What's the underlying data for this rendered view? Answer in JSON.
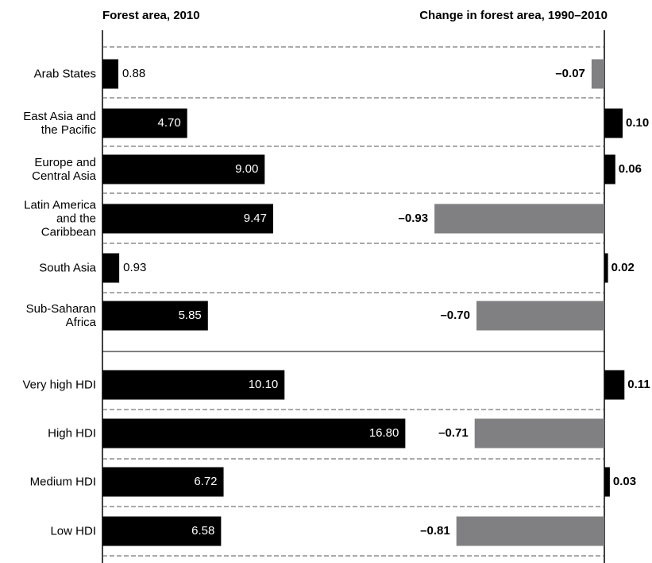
{
  "chart_data": [
    {
      "type": "hbar",
      "title": "Forest area, 2010",
      "categories": [
        "Arab States",
        "East Asia and\nthe Pacific",
        "Europe and\nCentral Asia",
        "Latin America\nand the\nCaribbean",
        "South Asia",
        "Sub-Saharan\nAfrica",
        "Very high HDI",
        "High HDI",
        "Medium HDI",
        "Low HDI"
      ],
      "values": [
        0.88,
        4.7,
        9.0,
        9.47,
        0.93,
        5.85,
        10.1,
        16.8,
        6.72,
        6.58
      ],
      "value_labels": [
        "0.88",
        "4.70",
        "9.00",
        "9.47",
        "0.93",
        "5.85",
        "10.10",
        "16.80",
        "6.72",
        "6.58"
      ],
      "color": "#000000",
      "xlim": [
        0,
        20
      ]
    },
    {
      "type": "hbar",
      "title": "Change in forest area, 1990–2010",
      "values": [
        -0.07,
        0.1,
        0.06,
        -0.93,
        0.02,
        -0.7,
        0.11,
        -0.71,
        0.03,
        -0.81
      ],
      "value_labels": [
        "–0.07",
        "0.10",
        "0.06",
        "–0.93",
        "0.02",
        "–0.70",
        "0.11",
        "–0.71",
        "0.03",
        "–0.81"
      ],
      "color_positive": "#000000",
      "color_negative": "#808083",
      "xlim": [
        -1,
        0.2
      ]
    }
  ]
}
